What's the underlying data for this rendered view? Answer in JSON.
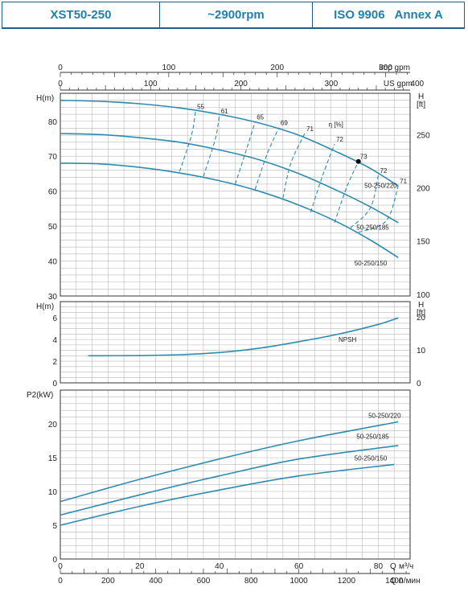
{
  "header": {
    "model": "XST50-250",
    "speed": "~2900rpm",
    "standard": "ISO 9906",
    "annex": "Annex A"
  },
  "axes_labels": {
    "imp_gpm": "Imp gpm",
    "us_gpm": "US gpm",
    "head_m": "H(m)",
    "head_ft_h": "H",
    "head_ft_unit": "[ft]",
    "npsh_m": "H(m)",
    "npsh_ft_h": "H",
    "npsh_ft_unit": "[ft]",
    "power": "P2(kW)",
    "q_m3h_q": "Q",
    "q_m3h_unit": "м³/ч",
    "q_lmin_q": "Q",
    "q_lmin_unit": "л/мин",
    "eta": "η [%]"
  },
  "colors": {
    "curve": "#2e8bb0",
    "header": "#1e7fb0",
    "grid": "#b8b8b8"
  },
  "chart_data": [
    {
      "type": "line",
      "title": "",
      "x_unit": "m³/h",
      "xlim": [
        0,
        88
      ],
      "xticks_m3h": [
        0,
        20,
        40,
        60,
        80
      ],
      "xticks_lmin": [
        0,
        200,
        400,
        600,
        800,
        1000,
        1200,
        1400
      ],
      "xticks_us_gpm": [
        0,
        100,
        200,
        300,
        400
      ],
      "xticks_imp_gpm": [
        0,
        100,
        200,
        300
      ],
      "ylabel": "H(m)",
      "ylim": [
        30,
        88
      ],
      "yticks": [
        30,
        40,
        50,
        60,
        70,
        80
      ],
      "y2ticks_ft": [
        100,
        150,
        200,
        250
      ],
      "series": [
        {
          "name": "50-250/220",
          "x": [
            0,
            10,
            20,
            30,
            40,
            50,
            60,
            70,
            78,
            85
          ],
          "y": [
            86,
            85.7,
            85,
            83.8,
            82,
            79.5,
            76,
            71,
            66.5,
            61.5
          ]
        },
        {
          "name": "50-250/185",
          "x": [
            0,
            10,
            20,
            30,
            40,
            50,
            60,
            70,
            78,
            85
          ],
          "y": [
            76.5,
            76.2,
            75.3,
            74,
            71.8,
            69,
            65,
            60,
            55.5,
            51
          ]
        },
        {
          "name": "50-250/150",
          "x": [
            0,
            10,
            20,
            30,
            40,
            50,
            60,
            70,
            78,
            85
          ],
          "y": [
            68,
            67.8,
            66.8,
            65.2,
            63,
            60,
            56,
            51,
            46,
            41
          ]
        }
      ],
      "efficiency": [
        {
          "label": "55",
          "x": [
            30,
            33,
            34
          ],
          "y": [
            65.6,
            76,
            82.8
          ]
        },
        {
          "label": "61",
          "x": [
            36,
            39,
            40
          ],
          "y": [
            64.2,
            75,
            81.6
          ]
        },
        {
          "label": "65",
          "x": [
            44,
            47,
            49
          ],
          "y": [
            62,
            72.5,
            79.8
          ]
        },
        {
          "label": "69",
          "x": [
            49,
            52,
            55
          ],
          "y": [
            60.5,
            70.5,
            78.2
          ]
        },
        {
          "label": "71",
          "x": [
            56,
            58,
            61.5
          ],
          "y": [
            58,
            68,
            76.5
          ]
        },
        {
          "label": "72",
          "x": [
            63,
            66,
            69
          ],
          "y": [
            54,
            64.5,
            73.5
          ]
        },
        {
          "label": "73",
          "x": [
            69,
            72,
            75
          ],
          "y": [
            51,
            61,
            68.5
          ]
        },
        {
          "label": "72",
          "x": [
            73,
            78,
            80
          ],
          "y": [
            49.5,
            55.2,
            64.5
          ]
        },
        {
          "label": "71",
          "x": [
            75,
            82,
            85
          ],
          "y": [
            48.2,
            51.5,
            61.5
          ]
        }
      ],
      "bep": {
        "x": 75,
        "y": 68.5
      }
    },
    {
      "type": "line",
      "ylabel": "H(m)",
      "ylim": [
        0,
        7.5
      ],
      "yticks": [
        0,
        2,
        4,
        6
      ],
      "y2ticks_ft": [
        0,
        10,
        20
      ],
      "series": [
        {
          "name": "NPSH",
          "x": [
            7,
            20,
            30,
            40,
            50,
            60,
            70,
            80,
            85
          ],
          "y": [
            2.5,
            2.52,
            2.6,
            2.8,
            3.2,
            3.8,
            4.5,
            5.4,
            6
          ]
        }
      ]
    },
    {
      "type": "line",
      "ylabel": "P2(kW)",
      "ylim": [
        0,
        25
      ],
      "yticks": [
        0,
        5,
        10,
        15,
        20
      ],
      "series": [
        {
          "name": "50-250/220",
          "x": [
            0,
            20,
            40,
            60,
            85
          ],
          "y": [
            8.5,
            11.8,
            14.8,
            17.5,
            20.3
          ]
        },
        {
          "name": "50-250/185",
          "x": [
            0,
            20,
            40,
            60,
            85
          ],
          "y": [
            6.5,
            9.5,
            12.3,
            14.8,
            16.8
          ]
        },
        {
          "name": "50-250/150",
          "x": [
            0,
            20,
            40,
            60,
            84
          ],
          "y": [
            5,
            7.8,
            10.2,
            12.3,
            14
          ]
        }
      ]
    }
  ]
}
